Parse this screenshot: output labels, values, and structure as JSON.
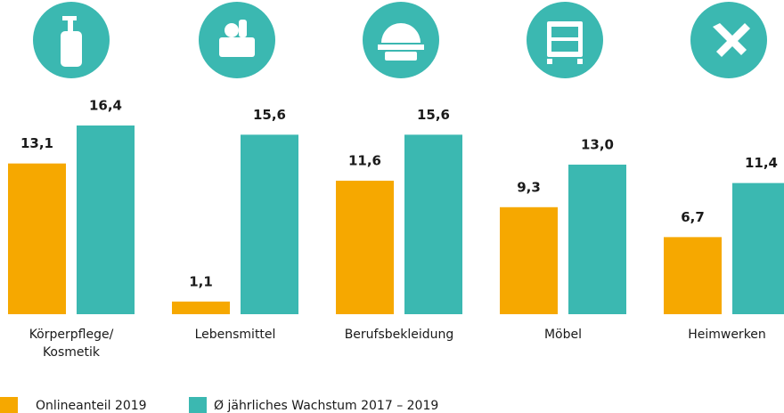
{
  "chart_data": {
    "type": "bar",
    "categories": [
      "Körperpflege/\nKosmetik",
      "Lebensmittel",
      "Berufsbekleidung",
      "Möbel",
      "Heimwerken"
    ],
    "series": [
      {
        "name": "Onlineanteil 2019",
        "color": "#f6a800",
        "values": [
          13.1,
          1.1,
          11.6,
          9.3,
          6.7
        ],
        "value_labels": [
          "13,1",
          "1,1",
          "11,6",
          "9,3",
          "6,7"
        ]
      },
      {
        "name": "Ø jährliches Wachstum 2017 – 2019",
        "color": "#3bb8b1",
        "values": [
          16.4,
          15.6,
          15.6,
          13.0,
          11.4
        ],
        "value_labels": [
          "16,4",
          "15,6",
          "15,6",
          "13,0",
          "11,4"
        ]
      }
    ]
  }
}
